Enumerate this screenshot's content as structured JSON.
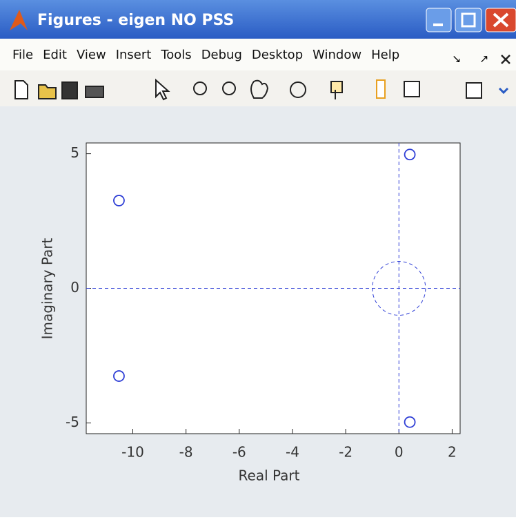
{
  "window": {
    "title": "Figures - eigen NO PSS",
    "menu": [
      "File",
      "Edit",
      "View",
      "Insert",
      "Tools",
      "Debug",
      "Desktop",
      "Window",
      "Help"
    ]
  },
  "chart_data": {
    "type": "scatter",
    "x_label": "Real Part",
    "y_label": "Imaginary Part",
    "series": [
      {
        "color": "#2f3fd6",
        "x": [
          -10.52,
          -10.52,
          0.41,
          0.41
        ],
        "values": [
          3.26,
          -3.26,
          4.97,
          -4.97
        ]
      }
    ],
    "xlim": [
      -11.75,
      2.3
    ],
    "xticks": [
      -10,
      -8,
      -6,
      -4,
      -2,
      0,
      2
    ],
    "ylim": [
      -5.4,
      5.4
    ],
    "yticks": [
      -5,
      0,
      5
    ],
    "unit_circle": true
  }
}
